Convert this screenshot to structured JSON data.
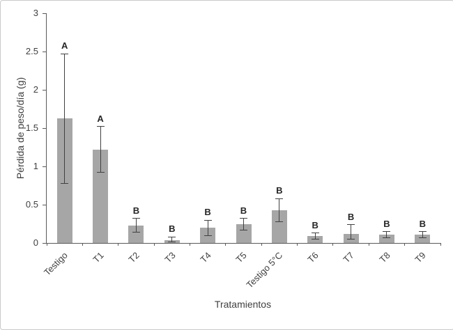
{
  "chart_data": {
    "type": "bar",
    "title": "",
    "xlabel": "Tratamientos",
    "ylabel": "Pérdida de peso/día (g)",
    "ylim": [
      0,
      3
    ],
    "yticks": [
      0,
      0.5,
      1,
      1.5,
      2,
      2.5,
      3
    ],
    "ytick_labels": [
      "0",
      "0.5",
      "1",
      "1.5",
      "2",
      "2.5",
      "3"
    ],
    "grid": false,
    "legend": "none",
    "bar_color": "#a6a6a6",
    "error_color": "#404040",
    "axis_color": "#595959",
    "categories": [
      "Testigo",
      "T1",
      "T2",
      "T3",
      "T4",
      "T5",
      "Testigo 5°C",
      "T6",
      "T7",
      "T8",
      "T9"
    ],
    "values": [
      1.63,
      1.22,
      0.23,
      0.04,
      0.2,
      0.25,
      0.43,
      0.09,
      0.12,
      0.11,
      0.11
    ],
    "error_low": [
      0.78,
      0.92,
      0.14,
      0.01,
      0.1,
      0.17,
      0.28,
      0.05,
      0.05,
      0.07,
      0.07
    ],
    "error_high": [
      2.47,
      1.52,
      0.32,
      0.08,
      0.3,
      0.32,
      0.58,
      0.13,
      0.24,
      0.15,
      0.15
    ],
    "significance_letters": [
      "A",
      "A",
      "B",
      "B",
      "B",
      "B",
      "B",
      "B",
      "B",
      "B",
      "B"
    ]
  }
}
